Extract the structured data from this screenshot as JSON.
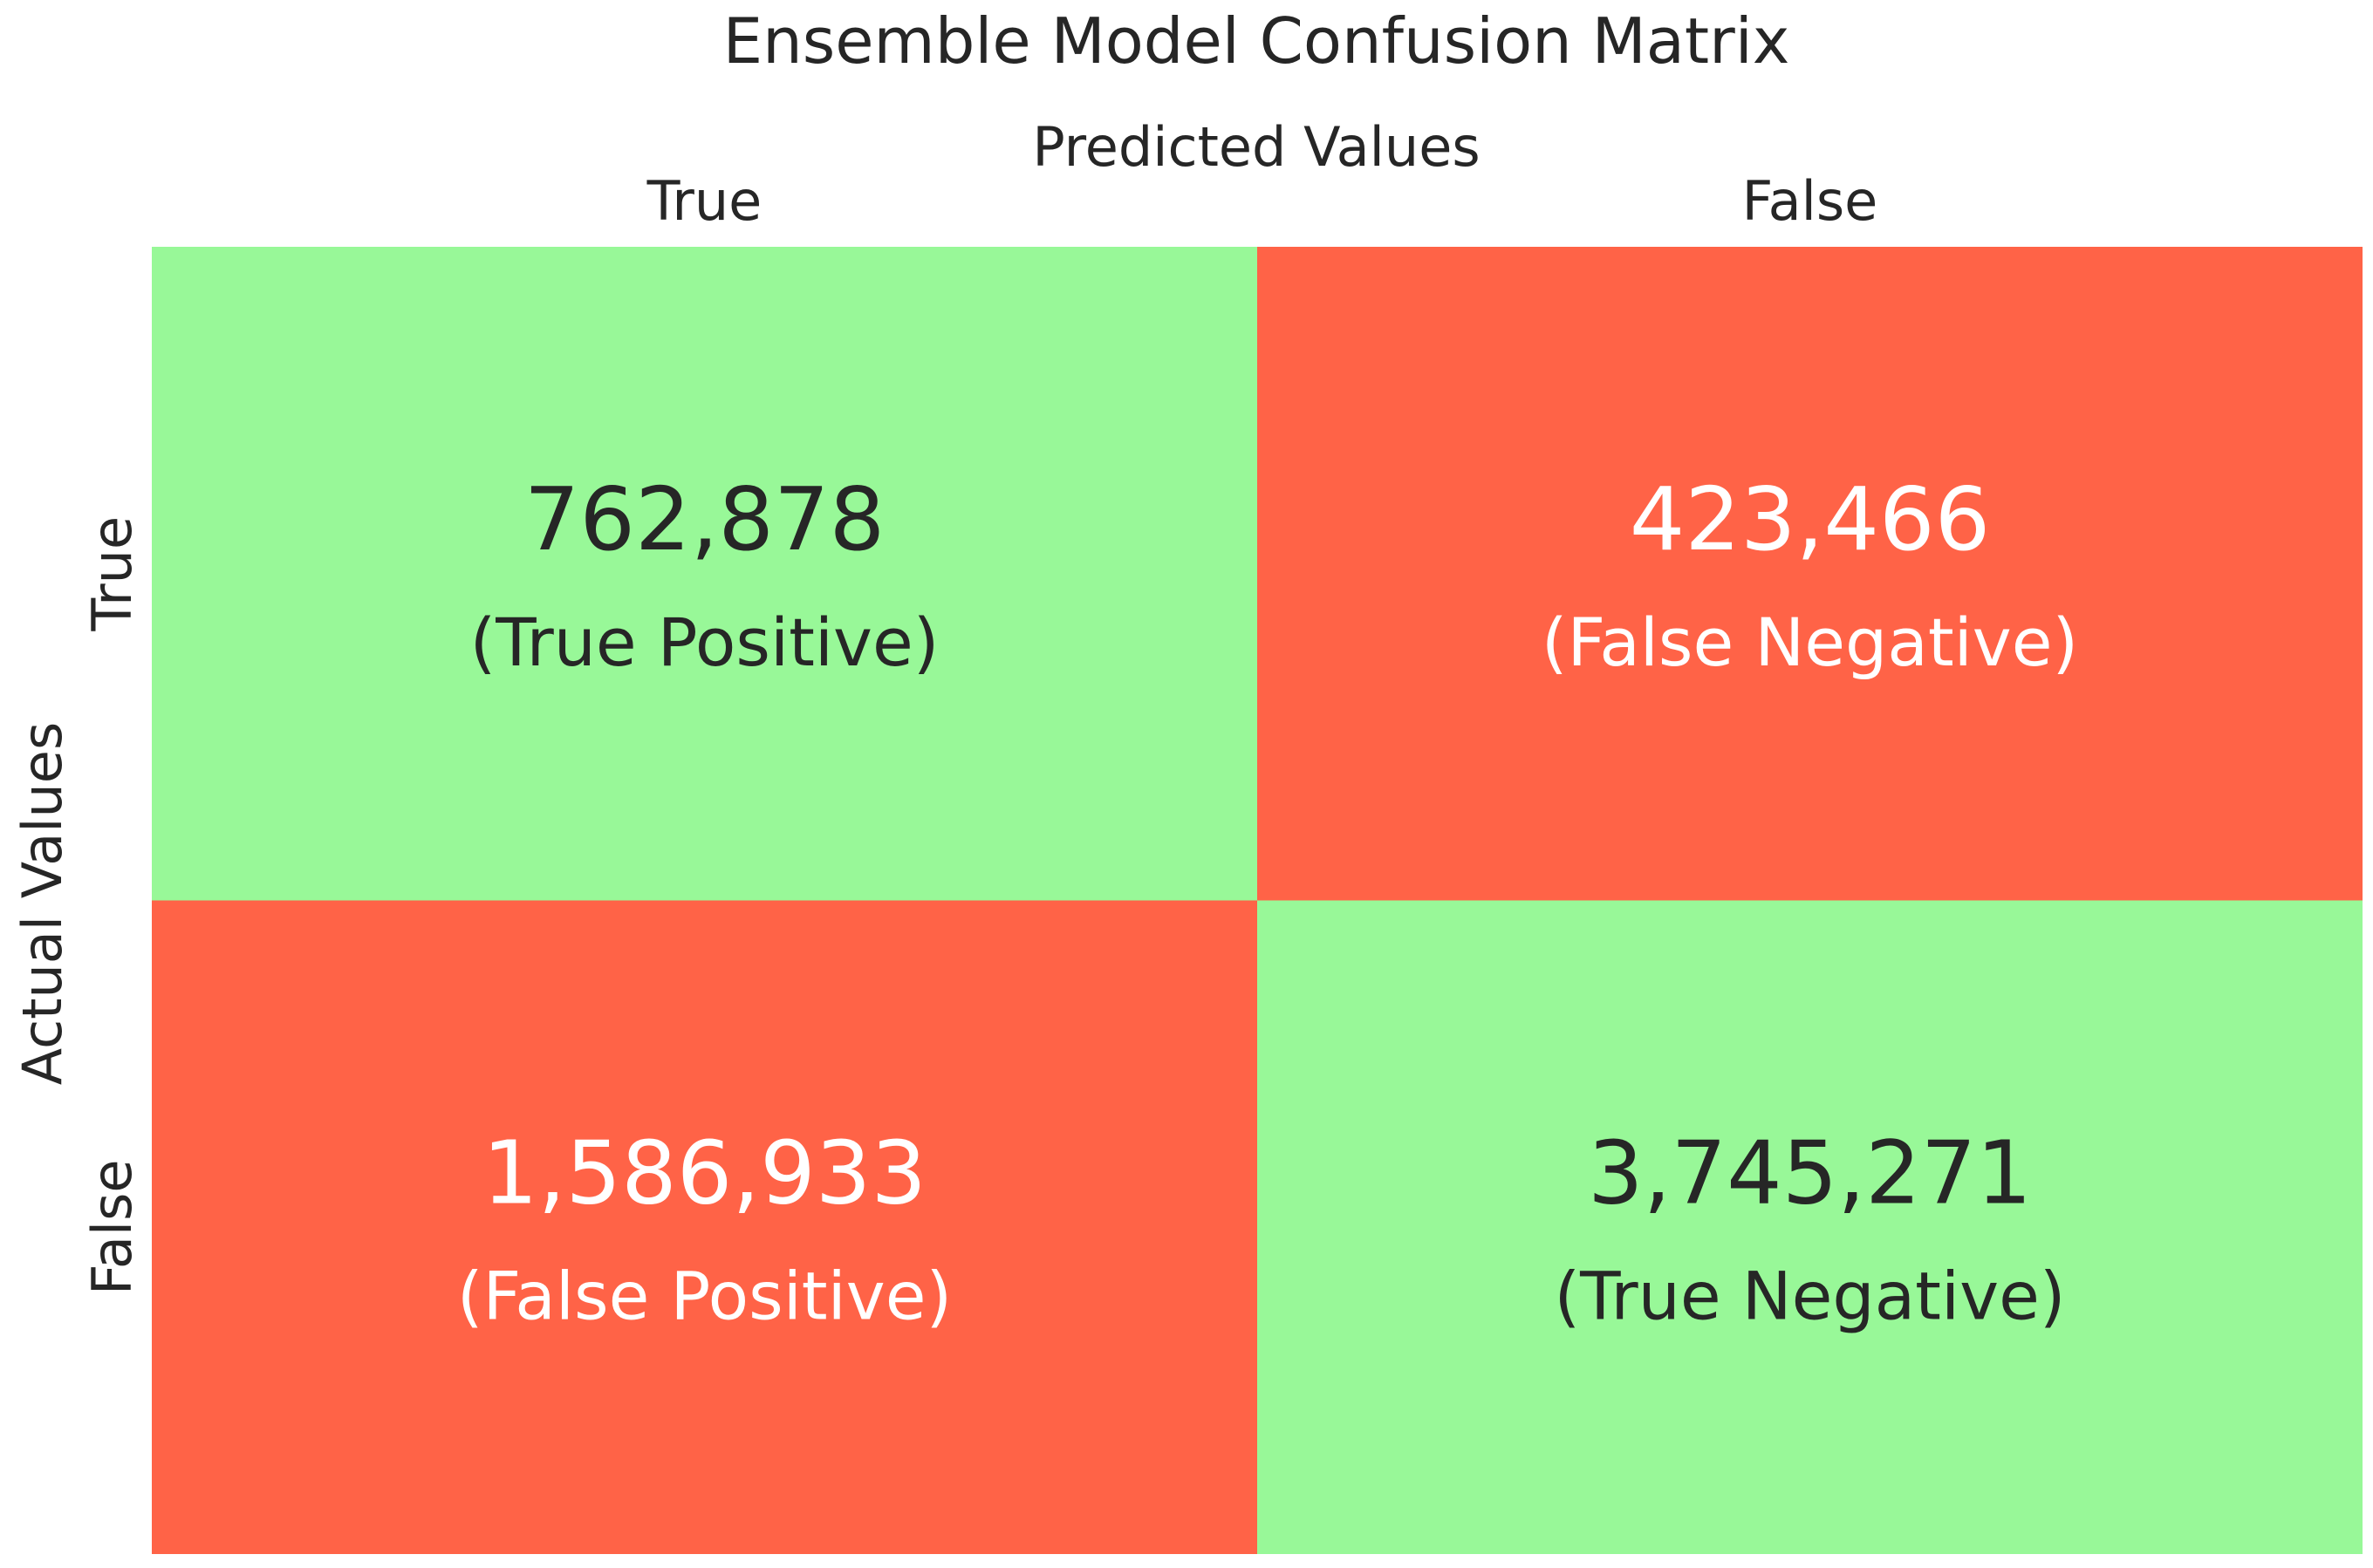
{
  "chart_data": {
    "type": "heatmap",
    "title": "Ensemble Model Confusion Matrix",
    "xlabel": "Predicted Values",
    "ylabel": "Actual Values",
    "x_categories": [
      "True",
      "False"
    ],
    "y_categories": [
      "True",
      "False"
    ],
    "cells": [
      [
        {
          "value": 762878,
          "value_label": "762,878",
          "label": "(True Positive)",
          "color": "#98f898",
          "text_color": "#262626"
        },
        {
          "value": 423466,
          "value_label": "423,466",
          "label": "(False Negative)",
          "color": "#ff6347",
          "text_color": "#ffffff"
        }
      ],
      [
        {
          "value": 1586933,
          "value_label": "1,586,933",
          "label": "(False Positive)",
          "color": "#ff6347",
          "text_color": "#ffffff"
        },
        {
          "value": 3745271,
          "value_label": "3,745,271",
          "label": "(True Negative)",
          "color": "#98f898",
          "text_color": "#262626"
        }
      ]
    ],
    "grid": false,
    "legend": "none"
  }
}
